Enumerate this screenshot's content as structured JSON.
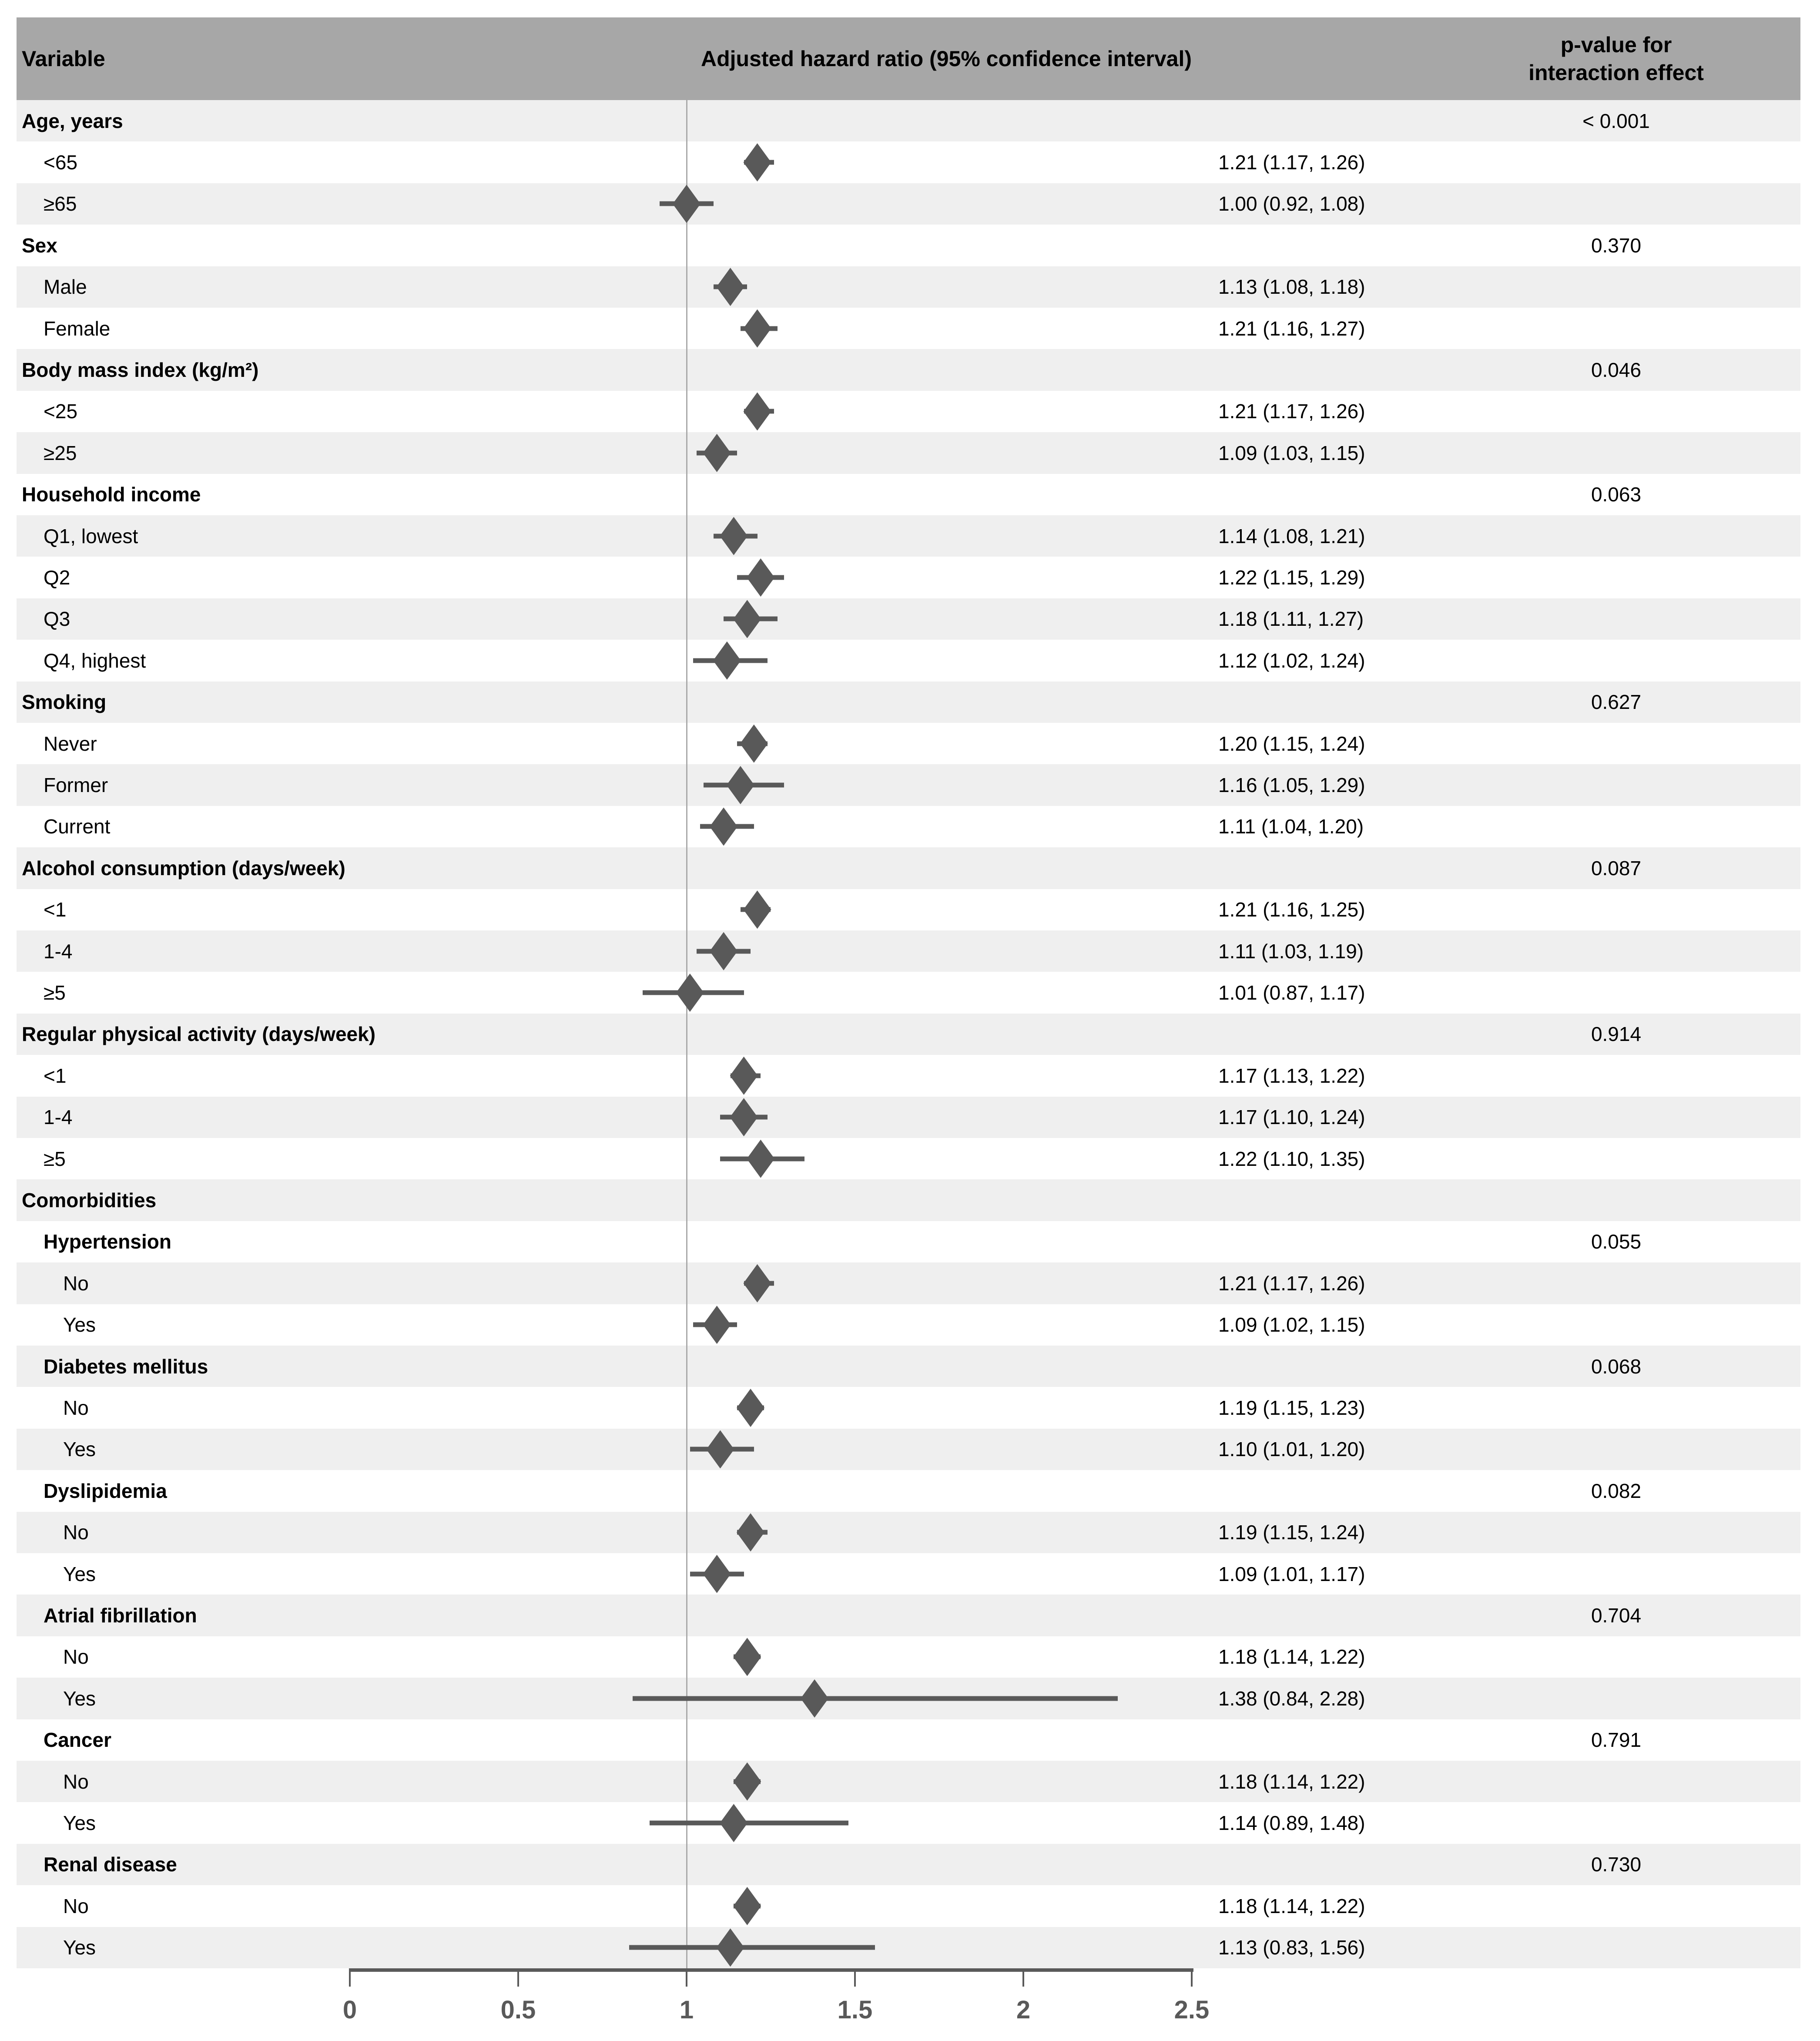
{
  "header": {
    "variable_label": "Variable",
    "hazard_label": "Adjusted hazard ratio (95% confidence interval)",
    "p_label_line1": "p-value for",
    "p_label_line2": "interaction effect"
  },
  "colors": {
    "header_bg": "#a7a7a7",
    "stripe": "#efefef",
    "marker": "#595959",
    "reference_line": "#a9a9a9",
    "axis": "#595959"
  },
  "chart_data": {
    "type": "forest",
    "title": "Adjusted hazard ratio (95% confidence interval)",
    "x_axis": {
      "range": [
        0,
        2.5
      ],
      "tick_values": [
        0,
        0.5,
        1,
        1.5,
        2,
        2.5
      ],
      "tick_labels": [
        "0",
        "0.5",
        "1",
        "1.5",
        "2",
        "2.5"
      ],
      "reference_line": 1
    },
    "rows": [
      {
        "label": "Age, years",
        "indent": 0,
        "bold": true,
        "p": "< 0.001"
      },
      {
        "label": "<65",
        "indent": 1,
        "est": 1.21,
        "lo": 1.17,
        "hi": 1.26,
        "text": "1.21 (1.17, 1.26)"
      },
      {
        "label": "≥65",
        "indent": 1,
        "est": 1.0,
        "lo": 0.92,
        "hi": 1.08,
        "text": "1.00 (0.92, 1.08)"
      },
      {
        "label": "Sex",
        "indent": 0,
        "bold": true,
        "p": "0.370"
      },
      {
        "label": "Male",
        "indent": 1,
        "est": 1.13,
        "lo": 1.08,
        "hi": 1.18,
        "text": "1.13 (1.08, 1.18)"
      },
      {
        "label": "Female",
        "indent": 1,
        "est": 1.21,
        "lo": 1.16,
        "hi": 1.27,
        "text": "1.21 (1.16, 1.27)"
      },
      {
        "label": "Body mass index (kg/m²)",
        "indent": 0,
        "bold": true,
        "p": "0.046"
      },
      {
        "label": "<25",
        "indent": 1,
        "est": 1.21,
        "lo": 1.17,
        "hi": 1.26,
        "text": "1.21 (1.17, 1.26)"
      },
      {
        "label": "≥25",
        "indent": 1,
        "est": 1.09,
        "lo": 1.03,
        "hi": 1.15,
        "text": "1.09 (1.03, 1.15)"
      },
      {
        "label": "Household income",
        "indent": 0,
        "bold": true,
        "p": "0.063"
      },
      {
        "label": "Q1, lowest",
        "indent": 1,
        "est": 1.14,
        "lo": 1.08,
        "hi": 1.21,
        "text": "1.14 (1.08, 1.21)"
      },
      {
        "label": "Q2",
        "indent": 1,
        "est": 1.22,
        "lo": 1.15,
        "hi": 1.29,
        "text": "1.22 (1.15, 1.29)"
      },
      {
        "label": "Q3",
        "indent": 1,
        "est": 1.18,
        "lo": 1.11,
        "hi": 1.27,
        "text": "1.18 (1.11, 1.27)"
      },
      {
        "label": "Q4, highest",
        "indent": 1,
        "est": 1.12,
        "lo": 1.02,
        "hi": 1.24,
        "text": "1.12 (1.02, 1.24)"
      },
      {
        "label": "Smoking",
        "indent": 0,
        "bold": true,
        "p": "0.627"
      },
      {
        "label": "Never",
        "indent": 1,
        "est": 1.2,
        "lo": 1.15,
        "hi": 1.24,
        "text": "1.20 (1.15, 1.24)"
      },
      {
        "label": "Former",
        "indent": 1,
        "est": 1.16,
        "lo": 1.05,
        "hi": 1.29,
        "text": "1.16 (1.05, 1.29)"
      },
      {
        "label": "Current",
        "indent": 1,
        "est": 1.11,
        "lo": 1.04,
        "hi": 1.2,
        "text": "1.11 (1.04, 1.20)"
      },
      {
        "label": "Alcohol consumption (days/week)",
        "indent": 0,
        "bold": true,
        "p": "0.087"
      },
      {
        "label": "<1",
        "indent": 1,
        "est": 1.21,
        "lo": 1.16,
        "hi": 1.25,
        "text": "1.21 (1.16, 1.25)"
      },
      {
        "label": "1-4",
        "indent": 1,
        "est": 1.11,
        "lo": 1.03,
        "hi": 1.19,
        "text": "1.11 (1.03, 1.19)"
      },
      {
        "label": "≥5",
        "indent": 1,
        "est": 1.01,
        "lo": 0.87,
        "hi": 1.17,
        "text": "1.01 (0.87, 1.17)"
      },
      {
        "label": "Regular physical activity (days/week)",
        "indent": 0,
        "bold": true,
        "p": "0.914"
      },
      {
        "label": "<1",
        "indent": 1,
        "est": 1.17,
        "lo": 1.13,
        "hi": 1.22,
        "text": "1.17 (1.13, 1.22)"
      },
      {
        "label": "1-4",
        "indent": 1,
        "est": 1.17,
        "lo": 1.1,
        "hi": 1.24,
        "text": "1.17 (1.10, 1.24)"
      },
      {
        "label": "≥5",
        "indent": 1,
        "est": 1.22,
        "lo": 1.1,
        "hi": 1.35,
        "text": "1.22 (1.10, 1.35)"
      },
      {
        "label": "Comorbidities",
        "indent": 0,
        "bold": true
      },
      {
        "label": "Hypertension",
        "indent": 1,
        "bold": true,
        "p": "0.055"
      },
      {
        "label": "No",
        "indent": 2,
        "est": 1.21,
        "lo": 1.17,
        "hi": 1.26,
        "text": "1.21 (1.17, 1.26)"
      },
      {
        "label": "Yes",
        "indent": 2,
        "est": 1.09,
        "lo": 1.02,
        "hi": 1.15,
        "text": "1.09 (1.02, 1.15)"
      },
      {
        "label": "Diabetes mellitus",
        "indent": 1,
        "bold": true,
        "p": "0.068"
      },
      {
        "label": "No",
        "indent": 2,
        "est": 1.19,
        "lo": 1.15,
        "hi": 1.23,
        "text": "1.19 (1.15, 1.23)"
      },
      {
        "label": "Yes",
        "indent": 2,
        "est": 1.1,
        "lo": 1.01,
        "hi": 1.2,
        "text": "1.10 (1.01, 1.20)"
      },
      {
        "label": "Dyslipidemia",
        "indent": 1,
        "bold": true,
        "p": "0.082"
      },
      {
        "label": "No",
        "indent": 2,
        "est": 1.19,
        "lo": 1.15,
        "hi": 1.24,
        "text": "1.19 (1.15, 1.24)"
      },
      {
        "label": "Yes",
        "indent": 2,
        "est": 1.09,
        "lo": 1.01,
        "hi": 1.17,
        "text": "1.09 (1.01, 1.17)"
      },
      {
        "label": "Atrial fibrillation",
        "indent": 1,
        "bold": true,
        "p": "0.704"
      },
      {
        "label": "No",
        "indent": 2,
        "est": 1.18,
        "lo": 1.14,
        "hi": 1.22,
        "text": "1.18 (1.14, 1.22)"
      },
      {
        "label": "Yes",
        "indent": 2,
        "est": 1.38,
        "lo": 0.84,
        "hi": 2.28,
        "text": "1.38 (0.84, 2.28)"
      },
      {
        "label": "Cancer",
        "indent": 1,
        "bold": true,
        "p": "0.791"
      },
      {
        "label": "No",
        "indent": 2,
        "est": 1.18,
        "lo": 1.14,
        "hi": 1.22,
        "text": "1.18 (1.14, 1.22)"
      },
      {
        "label": "Yes",
        "indent": 2,
        "est": 1.14,
        "lo": 0.89,
        "hi": 1.48,
        "text": "1.14 (0.89, 1.48)"
      },
      {
        "label": "Renal disease",
        "indent": 1,
        "bold": true,
        "p": "0.730"
      },
      {
        "label": "No",
        "indent": 2,
        "est": 1.18,
        "lo": 1.14,
        "hi": 1.22,
        "text": "1.18 (1.14, 1.22)"
      },
      {
        "label": "Yes",
        "indent": 2,
        "est": 1.13,
        "lo": 0.83,
        "hi": 1.56,
        "text": "1.13 (0.83, 1.56)"
      }
    ]
  }
}
